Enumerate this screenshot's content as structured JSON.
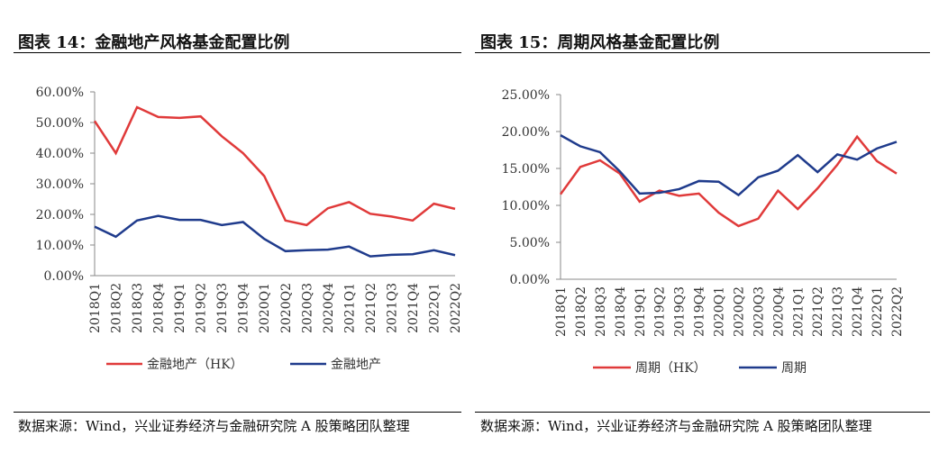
{
  "chart_data": [
    {
      "type": "line",
      "title": "图表 14：金融地产风格基金配置比例",
      "categories": [
        "2018Q1",
        "2018Q2",
        "2018Q3",
        "2018Q4",
        "2019Q1",
        "2019Q2",
        "2019Q3",
        "2019Q4",
        "2020Q1",
        "2020Q2",
        "2020Q3",
        "2020Q4",
        "2021Q1",
        "2021Q2",
        "2021Q3",
        "2021Q4",
        "2022Q1",
        "2022Q2"
      ],
      "series": [
        {
          "name": "金融地产（HK）",
          "color": "#e03a3a",
          "values": [
            50.5,
            40,
            55,
            51.8,
            51.5,
            52,
            45.5,
            40,
            32.5,
            18,
            16.5,
            22,
            24,
            20.2,
            19.3,
            18,
            23.5,
            21.8
          ]
        },
        {
          "name": "金融地产",
          "color": "#1f3b8c",
          "values": [
            16,
            12.7,
            18,
            19.5,
            18.2,
            18.2,
            16.5,
            17.5,
            12,
            8,
            8.3,
            8.5,
            9.5,
            6.3,
            6.8,
            7,
            8.3,
            6.7
          ]
        }
      ],
      "ylim": [
        0,
        60
      ],
      "yticks": [
        {
          "value": 0,
          "label": "0.00%"
        },
        {
          "value": 10,
          "label": "10.00%"
        },
        {
          "value": 20,
          "label": "20.00%"
        },
        {
          "value": 30,
          "label": "30.00%"
        },
        {
          "value": 40,
          "label": "40.00%"
        },
        {
          "value": 50,
          "label": "50.00%"
        },
        {
          "value": 60,
          "label": "60.00%"
        }
      ],
      "source": "数据来源：Wind，兴业证券经济与金融研究院 A 股策略团队整理"
    },
    {
      "type": "line",
      "title": "图表 15：周期风格基金配置比例",
      "categories": [
        "2018Q1",
        "2018Q2",
        "2018Q3",
        "2018Q4",
        "2019Q1",
        "2019Q2",
        "2019Q3",
        "2019Q4",
        "2020Q1",
        "2020Q2",
        "2020Q3",
        "2020Q4",
        "2021Q1",
        "2021Q2",
        "2021Q3",
        "2021Q4",
        "2022Q1",
        "2022Q2"
      ],
      "series": [
        {
          "name": "周期（HK）",
          "color": "#e03a3a",
          "values": [
            11.5,
            15.2,
            16.1,
            14.3,
            10.5,
            12,
            11.3,
            11.6,
            9,
            7.2,
            8.2,
            12,
            9.5,
            12.3,
            15.5,
            19.3,
            16,
            14.3
          ]
        },
        {
          "name": "周期",
          "color": "#1f3b8c",
          "values": [
            19.5,
            18,
            17.2,
            14.6,
            11.6,
            11.7,
            12.2,
            13.3,
            13.2,
            11.4,
            13.8,
            14.7,
            16.8,
            14.5,
            16.9,
            16.2,
            17.7,
            18.6
          ]
        }
      ],
      "ylim": [
        0,
        25
      ],
      "yticks": [
        {
          "value": 0,
          "label": "0.00%"
        },
        {
          "value": 5,
          "label": "5.00%"
        },
        {
          "value": 10,
          "label": "10.00%"
        },
        {
          "value": 15,
          "label": "15.00%"
        },
        {
          "value": 20,
          "label": "20.00%"
        },
        {
          "value": 25,
          "label": "25.00%"
        }
      ],
      "source": "数据来源：Wind，兴业证券经济与金融研究院 A 股策略团队整理"
    }
  ]
}
